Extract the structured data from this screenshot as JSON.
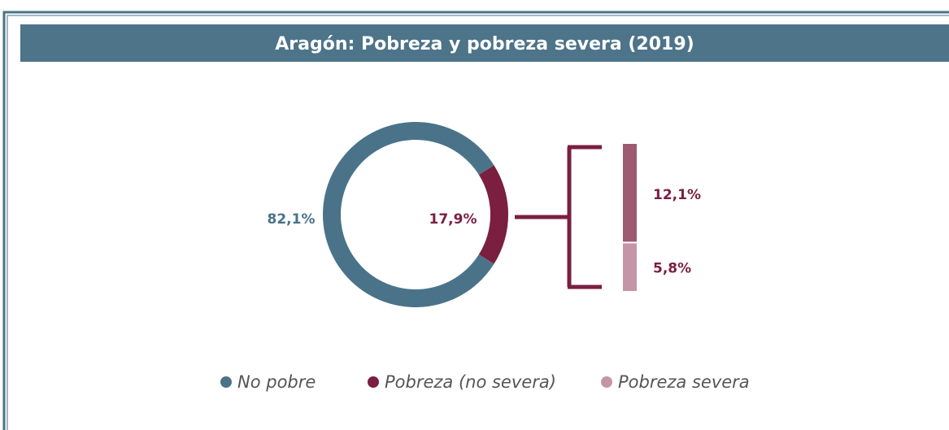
{
  "title": "Aragón: Pobreza y pobreza severa (2019)",
  "chart_data": [
    {
      "type": "pie",
      "categories": [
        "No pobre",
        "Pobreza"
      ],
      "values": [
        82.1,
        17.9
      ],
      "value_labels": [
        "82,1%",
        "17,9%"
      ],
      "colors": [
        "#4a7389",
        "#7a1f40"
      ],
      "donut": true
    },
    {
      "type": "bar",
      "stacked": true,
      "categories": [
        "Pobreza (no severa)",
        "Pobreza severa"
      ],
      "values": [
        12.1,
        5.8
      ],
      "value_labels": [
        "12,1%",
        "5,8%"
      ],
      "colors": [
        "#9e5a70",
        "#c495a6"
      ]
    }
  ],
  "legend": [
    {
      "name": "No pobre",
      "color": "#4a7389"
    },
    {
      "name": "Pobreza (no severa)",
      "color": "#7a1f40"
    },
    {
      "name": "Pobreza severa",
      "color": "#c495a6"
    }
  ]
}
